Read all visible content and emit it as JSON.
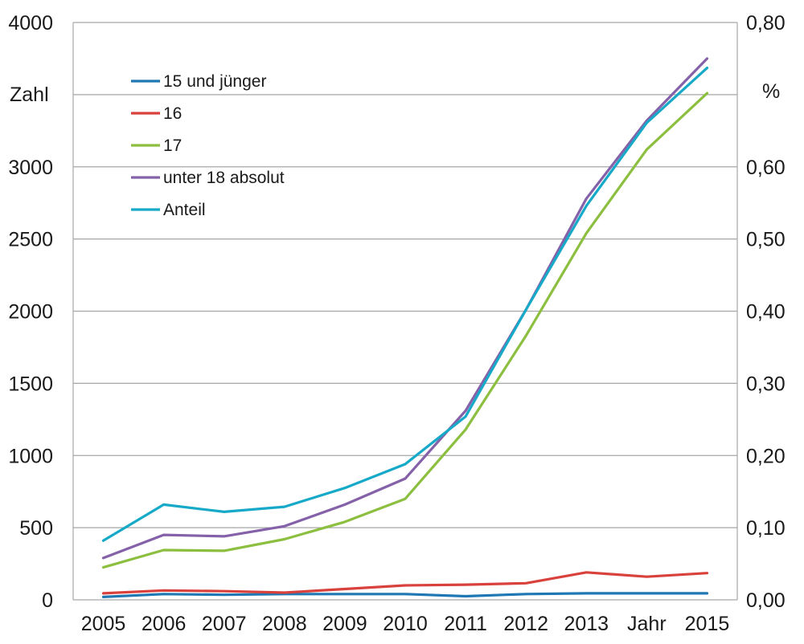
{
  "chart_data": {
    "type": "line",
    "x": [
      "2005",
      "2006",
      "2007",
      "2008",
      "2009",
      "2010",
      "2011",
      "2012",
      "2013",
      "Jahr",
      "2015"
    ],
    "left_axis": {
      "label": "Zahl",
      "ylim": [
        0,
        4000
      ],
      "ticks": [
        "0",
        "500",
        "1000",
        "1500",
        "2000",
        "2500",
        "3000",
        "4000"
      ],
      "tick_values": [
        0,
        500,
        1000,
        1500,
        2000,
        2500,
        3000,
        4000
      ]
    },
    "right_axis": {
      "label": "%",
      "ylim": [
        0,
        0.8
      ],
      "ticks": [
        "0,00",
        "0,10",
        "0,20",
        "0,30",
        "0,40",
        "0,50",
        "0,60",
        "0,80"
      ],
      "tick_values": [
        0,
        0.1,
        0.2,
        0.3,
        0.4,
        0.5,
        0.6,
        0.8
      ]
    },
    "grid": true,
    "legend_position": "top-left",
    "series": [
      {
        "name": "15 und jünger",
        "axis": "left",
        "color": "#1f78b4",
        "values": [
          20,
          40,
          35,
          40,
          40,
          40,
          25,
          40,
          45,
          45,
          45
        ]
      },
      {
        "name": "16",
        "axis": "left",
        "color": "#d9413d",
        "values": [
          45,
          65,
          60,
          50,
          75,
          100,
          105,
          115,
          190,
          160,
          185
        ]
      },
      {
        "name": "17",
        "axis": "left",
        "color": "#8cbf3f",
        "values": [
          225,
          345,
          340,
          420,
          540,
          700,
          1180,
          1830,
          2540,
          3120,
          3510
        ]
      },
      {
        "name": "unter 18 absolut",
        "axis": "left",
        "color": "#8461a8",
        "values": [
          290,
          450,
          440,
          510,
          660,
          840,
          1310,
          2010,
          2780,
          3320,
          3750
        ]
      },
      {
        "name": "Anteil",
        "axis": "right",
        "color": "#17a9c8",
        "values": [
          0.082,
          0.132,
          0.122,
          0.129,
          0.155,
          0.188,
          0.254,
          0.402,
          0.546,
          0.661,
          0.737
        ]
      }
    ]
  }
}
